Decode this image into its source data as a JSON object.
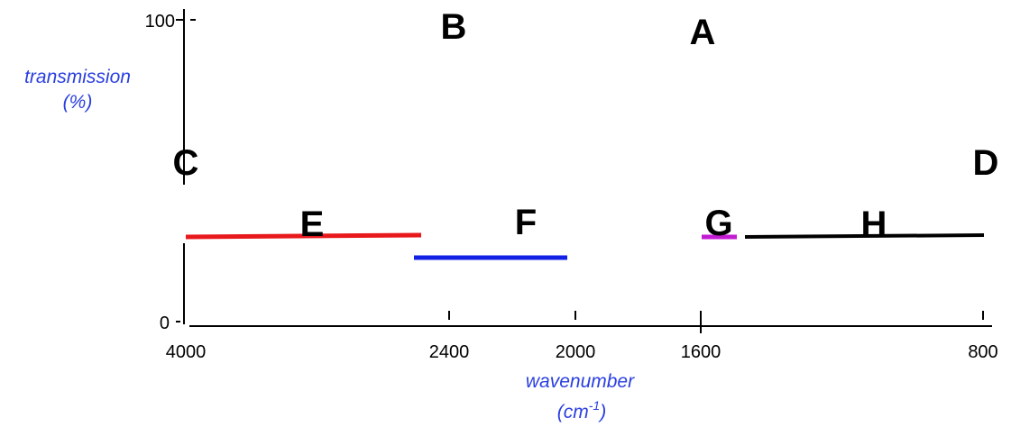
{
  "y_axis": {
    "title_line1": "transmission",
    "title_line2": "(%)",
    "tick_top": "100",
    "tick_bottom": "0"
  },
  "x_axis": {
    "title_line1": "wavenumber",
    "title_base": "(cm",
    "title_sup": "-1",
    "title_end": ")",
    "ticks": [
      "4000",
      "2400",
      "2000",
      "1600",
      "800"
    ]
  },
  "regions": {
    "A": "A",
    "B": "B",
    "C": "C",
    "D": "D",
    "E": "E",
    "F": "F",
    "G": "G",
    "H": "H"
  },
  "bands": [
    {
      "label": "E",
      "color": "#e8191c",
      "x_start": 4000,
      "x_end": 2500,
      "level": "E"
    },
    {
      "label": "F",
      "color": "#1221e6",
      "x_start": 2500,
      "x_end": 2000,
      "level": "F"
    },
    {
      "label": "G",
      "color": "#c21bd1",
      "x_start": 1600,
      "x_end": 1500,
      "level": "G"
    },
    {
      "label": "H",
      "color": "#000000",
      "x_start": 1500,
      "x_end": 800,
      "level": "H"
    }
  ]
}
